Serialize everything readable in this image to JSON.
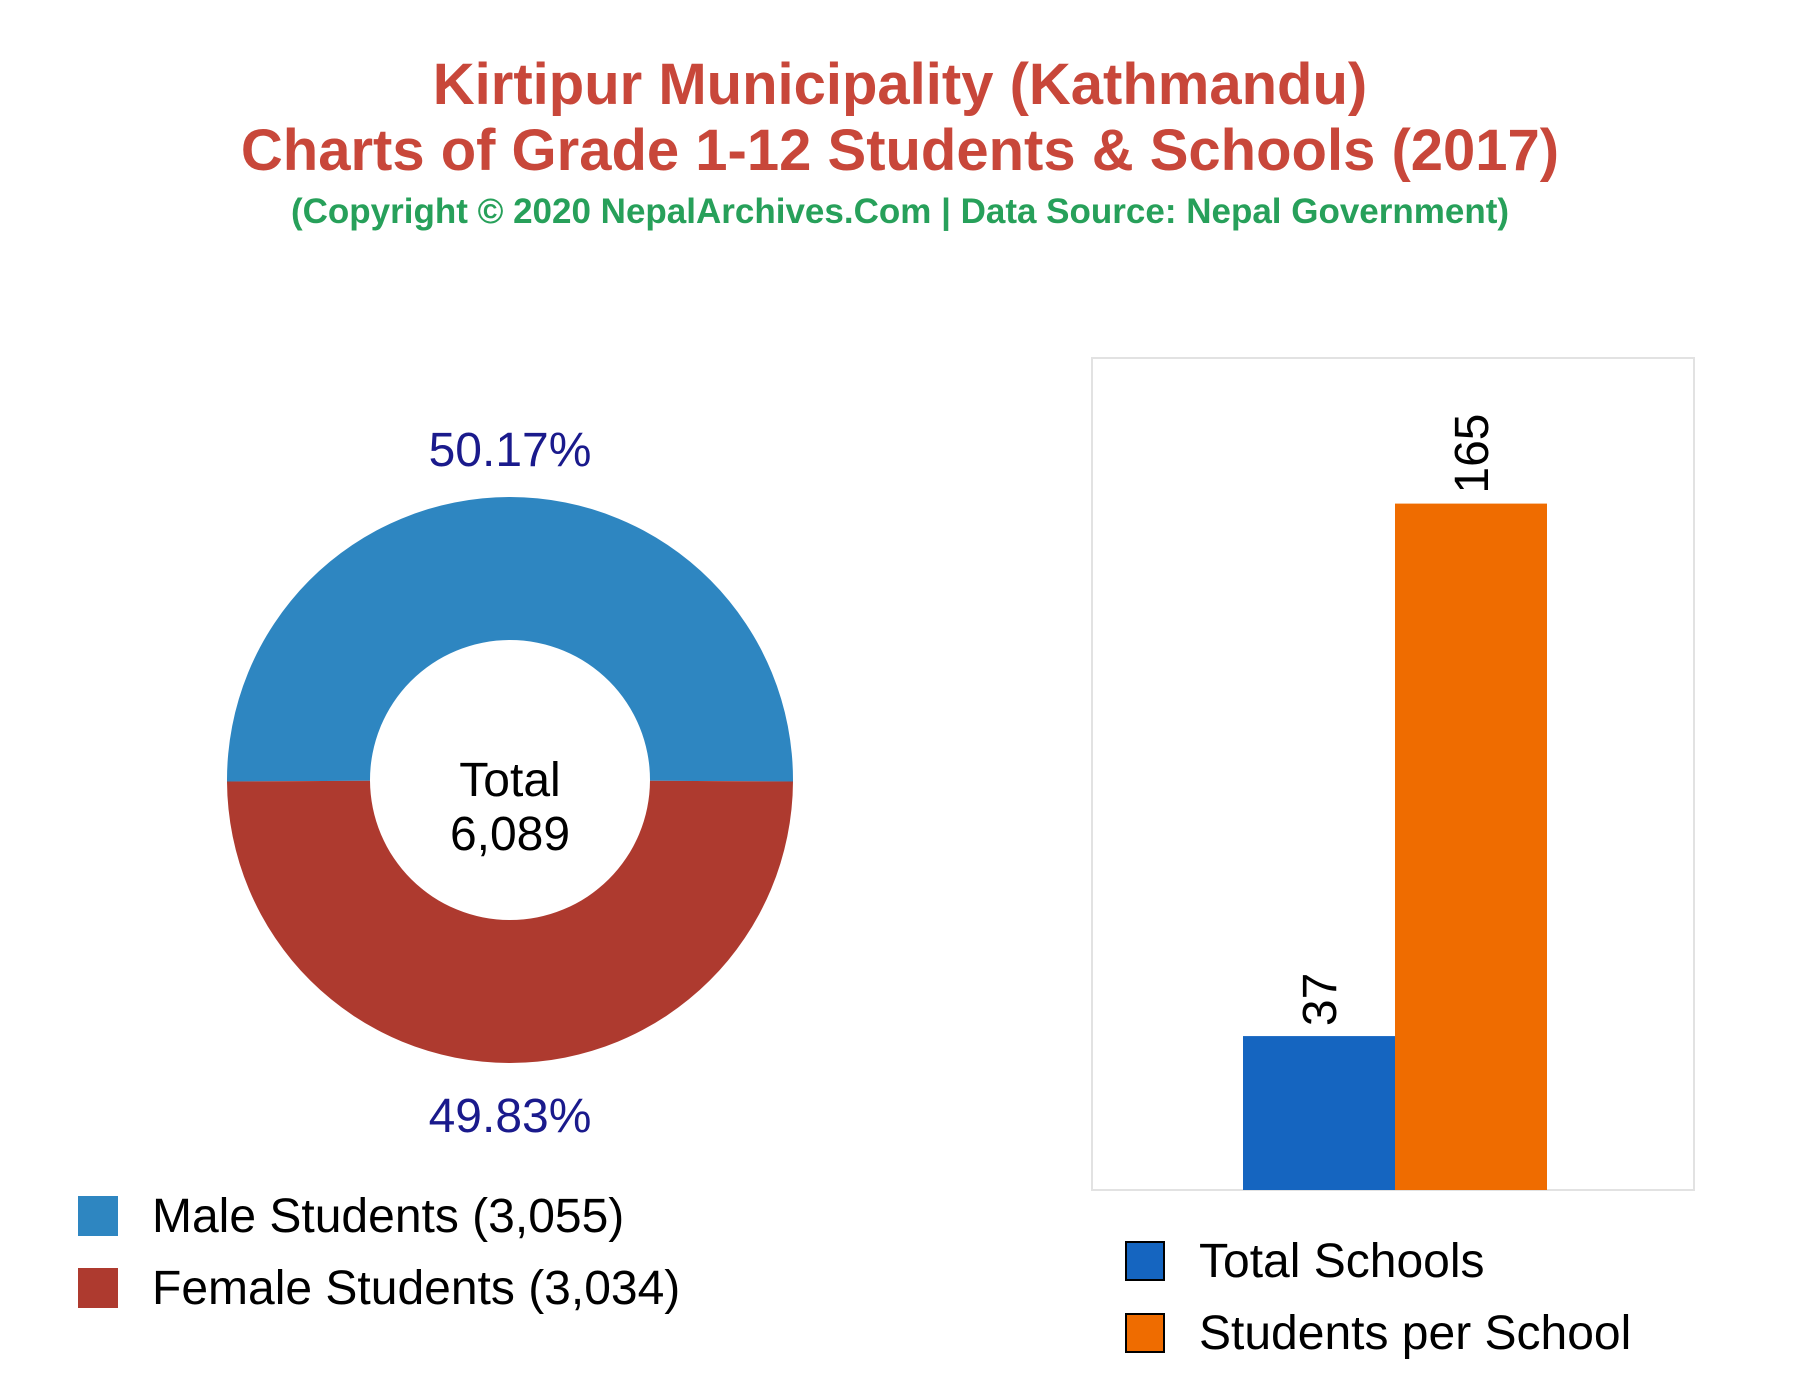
{
  "title": {
    "line1": "Kirtipur Municipality (Kathmandu)",
    "line2": "Charts of Grade 1-12 Students & Schools (2017)",
    "subtitle": "(Copyright © 2020 NepalArchives.Com | Data Source: Nepal Government)"
  },
  "colors": {
    "title": "#c8473a",
    "subtitle": "#27a05a",
    "male": "#2e86c1",
    "female": "#ae3a2f",
    "percent_label": "#1a1a8c",
    "total_schools": "#1565c0",
    "students_per_school": "#ef6c00"
  },
  "chart_data": [
    {
      "type": "pie",
      "style": "donut",
      "center_label": "Total",
      "center_value": "6,089",
      "slices": [
        {
          "name": "Male Students",
          "value": 3055,
          "percent_label": "50.17%",
          "legend": "Male Students (3,055)"
        },
        {
          "name": "Female Students",
          "value": 3034,
          "percent_label": "49.83%",
          "legend": "Female Students (3,034)"
        }
      ]
    },
    {
      "type": "bar",
      "categories": [
        "Total Schools",
        "Students per School"
      ],
      "values": [
        37,
        165
      ],
      "value_labels": [
        "37",
        "165"
      ],
      "legend": [
        "Total Schools",
        "Students per School"
      ],
      "ylim": [
        0,
        200
      ],
      "grid": false,
      "legend_placement": "bottom"
    }
  ]
}
